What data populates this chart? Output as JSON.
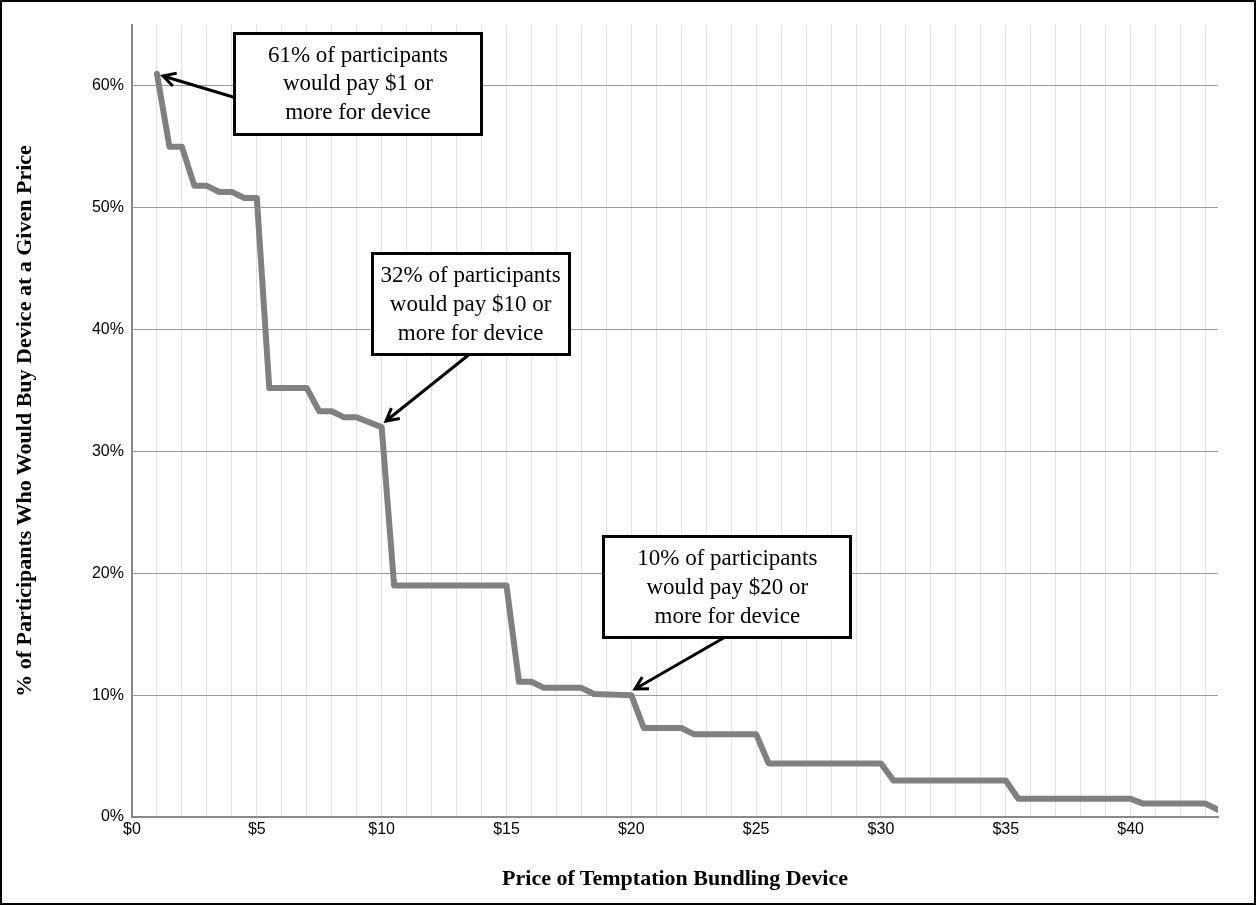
{
  "chart_data": {
    "type": "line",
    "xlabel": "Price of Temptation Bundling Device",
    "ylabel": "% of Participants Who Would Buy Device at a Given Price",
    "series": [
      {
        "color": "#808080",
        "x": [
          1,
          1.5,
          2,
          2.5,
          3,
          3.5,
          4,
          4.5,
          5,
          5.5,
          7,
          7.5,
          8,
          8.5,
          9,
          9.5,
          10,
          10.5,
          15,
          15.5,
          16,
          16.5,
          18,
          18.5,
          20,
          20.5,
          22,
          22.5,
          25,
          25.5,
          30,
          30.5,
          35,
          35.5,
          40,
          40.5,
          43,
          43.5
        ],
        "values": [
          61,
          55,
          55,
          51.8,
          51.8,
          51.3,
          51.3,
          50.8,
          50.8,
          35.2,
          35.2,
          33.3,
          33.3,
          32.8,
          32.8,
          32.4,
          32,
          19,
          19,
          11.1,
          11.1,
          10.6,
          10.6,
          10.1,
          10,
          7.3,
          7.3,
          6.8,
          6.8,
          4.4,
          4.4,
          3,
          3,
          1.5,
          1.5,
          1.1,
          1.1,
          0.6
        ]
      }
    ],
    "xlim": [
      0,
      43.5
    ],
    "xticks": [
      {
        "value": 0,
        "label": "$0"
      },
      {
        "value": 1,
        "label": null
      },
      {
        "value": 2,
        "label": null
      },
      {
        "value": 3,
        "label": null
      },
      {
        "value": 4,
        "label": null
      },
      {
        "value": 5,
        "label": "$5"
      },
      {
        "value": 6,
        "label": null
      },
      {
        "value": 7,
        "label": null
      },
      {
        "value": 8,
        "label": null
      },
      {
        "value": 9,
        "label": null
      },
      {
        "value": 10,
        "label": "$10"
      },
      {
        "value": 11,
        "label": null
      },
      {
        "value": 12,
        "label": null
      },
      {
        "value": 13,
        "label": null
      },
      {
        "value": 14,
        "label": null
      },
      {
        "value": 15,
        "label": "$15"
      },
      {
        "value": 16,
        "label": null
      },
      {
        "value": 17,
        "label": null
      },
      {
        "value": 18,
        "label": null
      },
      {
        "value": 19,
        "label": null
      },
      {
        "value": 20,
        "label": "$20"
      },
      {
        "value": 21,
        "label": null
      },
      {
        "value": 22,
        "label": null
      },
      {
        "value": 23,
        "label": null
      },
      {
        "value": 24,
        "label": null
      },
      {
        "value": 25,
        "label": "$25"
      },
      {
        "value": 26,
        "label": null
      },
      {
        "value": 27,
        "label": null
      },
      {
        "value": 28,
        "label": null
      },
      {
        "value": 29,
        "label": null
      },
      {
        "value": 30,
        "label": "$30"
      },
      {
        "value": 31,
        "label": null
      },
      {
        "value": 32,
        "label": null
      },
      {
        "value": 33,
        "label": null
      },
      {
        "value": 34,
        "label": null
      },
      {
        "value": 35,
        "label": "$35"
      },
      {
        "value": 36,
        "label": null
      },
      {
        "value": 37,
        "label": null
      },
      {
        "value": 38,
        "label": null
      },
      {
        "value": 39,
        "label": null
      },
      {
        "value": 40,
        "label": "$40"
      },
      {
        "value": 41,
        "label": null
      },
      {
        "value": 42,
        "label": null
      },
      {
        "value": 43,
        "label": null
      }
    ],
    "ylim": [
      0,
      65
    ],
    "yticks": [
      {
        "value": 0,
        "label": "0%"
      },
      {
        "value": 10,
        "label": "10%"
      },
      {
        "value": 20,
        "label": "20%"
      },
      {
        "value": 30,
        "label": "30%"
      },
      {
        "value": 40,
        "label": "40%"
      },
      {
        "value": 50,
        "label": "50%"
      },
      {
        "value": 60,
        "label": "60%"
      }
    ],
    "grid": true,
    "marker": "none",
    "line_style": "solid",
    "annotations": [
      {
        "text": "61% of participants would pay $1 or more for device",
        "x": 1,
        "y": 61
      },
      {
        "text": "32% of participants would pay $10 or more for device",
        "x": 10,
        "y": 32
      },
      {
        "text": "10% of participants would pay $20 or more for device",
        "x": 20,
        "y": 10
      }
    ]
  }
}
